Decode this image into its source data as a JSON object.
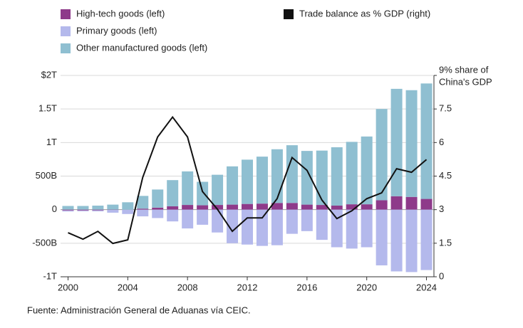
{
  "chart_data": {
    "type": "bar",
    "source": "Fuente: Administración General de Aduanas vía CEIC.",
    "y2_label": "China's GDP",
    "x": [
      2000,
      2001,
      2002,
      2003,
      2004,
      2005,
      2006,
      2007,
      2008,
      2009,
      2010,
      2011,
      2012,
      2013,
      2014,
      2015,
      2016,
      2017,
      2018,
      2019,
      2020,
      2021,
      2022,
      2023,
      2024
    ],
    "xlim": [
      1999.5,
      2024.5
    ],
    "xticks": [
      2000,
      2004,
      2008,
      2012,
      2016,
      2020,
      2024
    ],
    "ylim": [
      -1000,
      2000
    ],
    "yticks": [
      {
        "value": -1000,
        "label": "-1T"
      },
      {
        "value": -500,
        "label": "-500B"
      },
      0,
      {
        "value": 500,
        "label": "500B"
      },
      {
        "value": 1000,
        "label": "1T"
      },
      {
        "value": 1500,
        "label": "1.5T"
      },
      {
        "value": 2000,
        "label": "$2T"
      }
    ],
    "y2lim": [
      0,
      9
    ],
    "y2ticks": [
      0,
      1.5,
      3,
      4.5,
      6,
      7.5,
      {
        "value": 9,
        "label": "9% share of"
      }
    ],
    "grid": true,
    "series": [
      {
        "name": "High-tech goods (left)",
        "color": "#8e3a8a",
        "values": [
          -12,
          -12,
          -10,
          -5,
          0,
          15,
          30,
          50,
          70,
          65,
          70,
          75,
          85,
          90,
          100,
          100,
          75,
          70,
          60,
          80,
          80,
          140,
          200,
          190,
          160
        ]
      },
      {
        "name": "Primary goods (left)",
        "color": "#b4b9ec",
        "values": [
          -15,
          -12,
          -15,
          -40,
          -65,
          -100,
          -125,
          -175,
          -280,
          -225,
          -340,
          -500,
          -520,
          -540,
          -530,
          -360,
          -320,
          -450,
          -560,
          -580,
          -560,
          -830,
          -920,
          -930,
          -900
        ]
      },
      {
        "name": "Other manufactured goods (left)",
        "color": "#8fbfd1",
        "values": [
          55,
          55,
          60,
          75,
          110,
          190,
          270,
          390,
          500,
          350,
          450,
          570,
          660,
          700,
          800,
          860,
          800,
          810,
          870,
          930,
          1010,
          1360,
          1600,
          1590,
          1720
        ]
      },
      {
        "name": "Trade balance as % GDP (right)",
        "color": "#111111",
        "type": "line",
        "axis": "y2",
        "values": [
          1.97,
          1.68,
          2.03,
          1.49,
          1.65,
          4.44,
          6.25,
          7.14,
          6.25,
          3.81,
          3.02,
          2.03,
          2.63,
          2.63,
          3.49,
          5.33,
          4.76,
          3.43,
          2.6,
          2.95,
          3.49,
          3.75,
          4.83,
          4.67,
          5.24
        ]
      }
    ]
  }
}
